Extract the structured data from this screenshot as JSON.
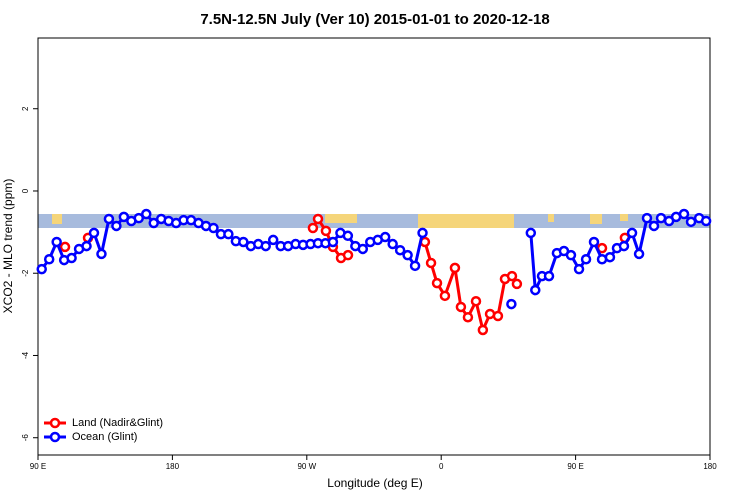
{
  "chart_data": {
    "type": "line",
    "title": "7.5N-12.5N July (Ver 10)   2015-01-01 to 2020-12-18",
    "x_label": "Longitude (deg E)",
    "y_label": "XCO2 - MLO trend (ppm)",
    "xlim": [
      90,
      540
    ],
    "ylim": [
      -6.42,
      3.72
    ],
    "xticks": [
      {
        "value": 90,
        "label": "90 E"
      },
      180,
      {
        "value": 270,
        "label": "90 W"
      },
      {
        "value": 360,
        "label": "0"
      },
      {
        "value": 450,
        "label": "90 E"
      },
      {
        "value": 540,
        "label": "180"
      }
    ],
    "yticks": [
      -6,
      -4,
      -2,
      0,
      2
    ],
    "legend": "bottom-left",
    "series": [
      {
        "name": "Land (Nadir&Glint)",
        "color": "#ff0000",
        "x": [
          108.1,
          null,
          123.5,
          null,
          274.1,
          277.5,
          282.8,
          287.5,
          292.9,
          297.6,
          null,
          349.1,
          353.2,
          357.2,
          362.5,
          369.2,
          373.2,
          377.9,
          383.3,
          387.9,
          392.7,
          398,
          402.7,
          407.4,
          410.7,
          null,
          467.7,
          null,
          483
        ],
        "values": [
          -1.36,
          null,
          -1.14,
          null,
          -0.9,
          -0.68,
          -0.97,
          -1.36,
          -1.63,
          -1.56,
          null,
          -1.24,
          -1.75,
          -2.24,
          -2.55,
          -1.87,
          -2.82,
          -3.07,
          -2.68,
          -3.38,
          -2.99,
          -3.04,
          -2.14,
          -2.07,
          -2.26,
          null,
          -1.39,
          null,
          -1.14
        ]
      },
      {
        "name": "Ocean (Glint)",
        "color": "#0000ff",
        "x": [
          92.5,
          97.5,
          102.5,
          107.5,
          112.5,
          117.5,
          122.5,
          127.5,
          132.5,
          137.5,
          142.5,
          147.5,
          152.5,
          157.5,
          162.5,
          167.5,
          172.5,
          177.5,
          182.5,
          187.5,
          192.5,
          197.5,
          202.5,
          207.5,
          212.5,
          217.5,
          222.5,
          227.5,
          232.5,
          237.5,
          242.5,
          247.5,
          252.5,
          257.5,
          262.5,
          267.5,
          272.5,
          277.5,
          282.5,
          287.5,
          292.5,
          297.5,
          302.5,
          307.5,
          312.5,
          317.5,
          322.5,
          327.5,
          332.5,
          337.5,
          342.5,
          347.5,
          null,
          407,
          null,
          420,
          423,
          427.5,
          432.2,
          437.5,
          442.2,
          446.9,
          452.3,
          457,
          462.3,
          467.7,
          473,
          477.7,
          482.4,
          487.8,
          492.5,
          497.8,
          502.5,
          507.2,
          512.6,
          517.3,
          522.6,
          527.3,
          532.7,
          537.4
        ],
        "values": [
          -1.9,
          -1.66,
          -1.24,
          -1.68,
          -1.63,
          -1.41,
          -1.34,
          -1.02,
          -1.53,
          -0.68,
          -0.85,
          -0.63,
          -0.73,
          -0.66,
          -0.56,
          -0.78,
          -0.68,
          -0.73,
          -0.78,
          -0.71,
          -0.71,
          -0.78,
          -0.85,
          -0.9,
          -1.05,
          -1.05,
          -1.22,
          -1.24,
          -1.34,
          -1.29,
          -1.34,
          -1.19,
          -1.34,
          -1.34,
          -1.29,
          -1.31,
          -1.29,
          -1.27,
          -1.27,
          -1.24,
          -1.02,
          -1.09,
          -1.34,
          -1.41,
          -1.24,
          -1.19,
          -1.12,
          -1.29,
          -1.44,
          -1.56,
          -1.82,
          -1.02,
          null,
          -2.75,
          null,
          -1.02,
          -2.41,
          -2.07,
          -2.07,
          -1.51,
          -1.46,
          -1.56,
          -1.9,
          -1.66,
          -1.24,
          -1.66,
          -1.61,
          -1.39,
          -1.34,
          -1.02,
          -1.53,
          -0.66,
          -0.85,
          -0.66,
          -0.73,
          -0.63,
          -0.56,
          -0.75,
          -0.66,
          -0.73
        ]
      }
    ]
  }
}
